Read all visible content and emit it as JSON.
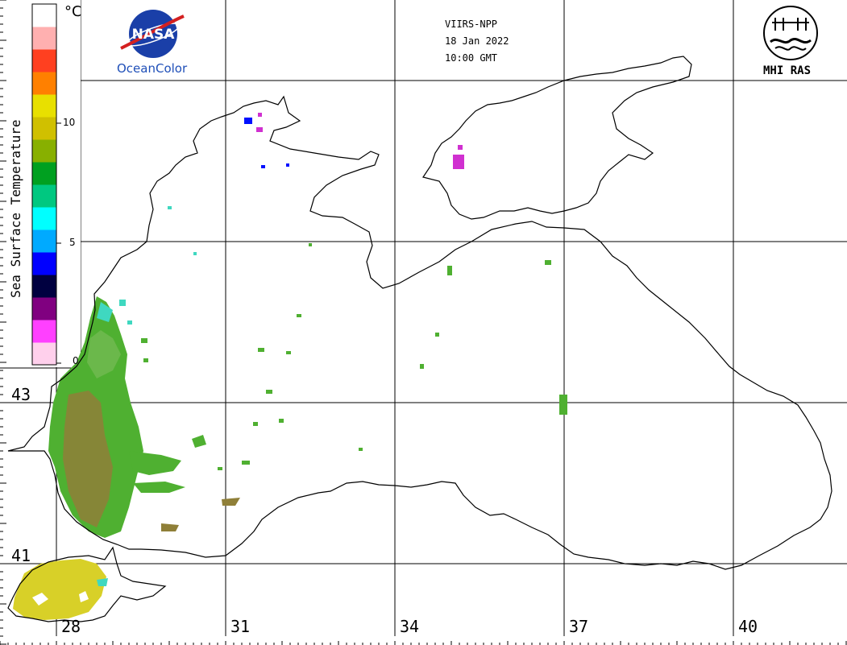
{
  "header": {
    "satellite": "VIIRS-NPP",
    "date": "18 Jan 2022",
    "time": "10:00 GMT"
  },
  "logos": {
    "nasa": "NASA",
    "oceancolor": "OceanColor",
    "mhi": "MHI RAS"
  },
  "legend": {
    "title": "Sea Surface Temperature",
    "unit": "°C",
    "ticks": [
      "10",
      "5",
      "0"
    ],
    "colors": [
      "#ffd0ec",
      "#ff40ff",
      "#800080",
      "#000040",
      "#0000ff",
      "#00aaff",
      "#00ffff",
      "#00c880",
      "#00a020",
      "#88b000",
      "#d0c000",
      "#e8e000",
      "#ff8000",
      "#ff4020",
      "#ffb0b0",
      "#ffffff"
    ]
  },
  "axes": {
    "latitudes": [
      "43",
      "41"
    ],
    "longitudes": [
      "28",
      "31",
      "34",
      "37",
      "40"
    ]
  },
  "colors": {
    "sst_green": "#4fb031",
    "sst_brown": "#8f7f38",
    "sst_yellow": "#d8d028",
    "sst_cyan": "#3fd8c0",
    "sst_magenta": "#d030d0",
    "coast": "#000000",
    "grid": "#000000"
  }
}
